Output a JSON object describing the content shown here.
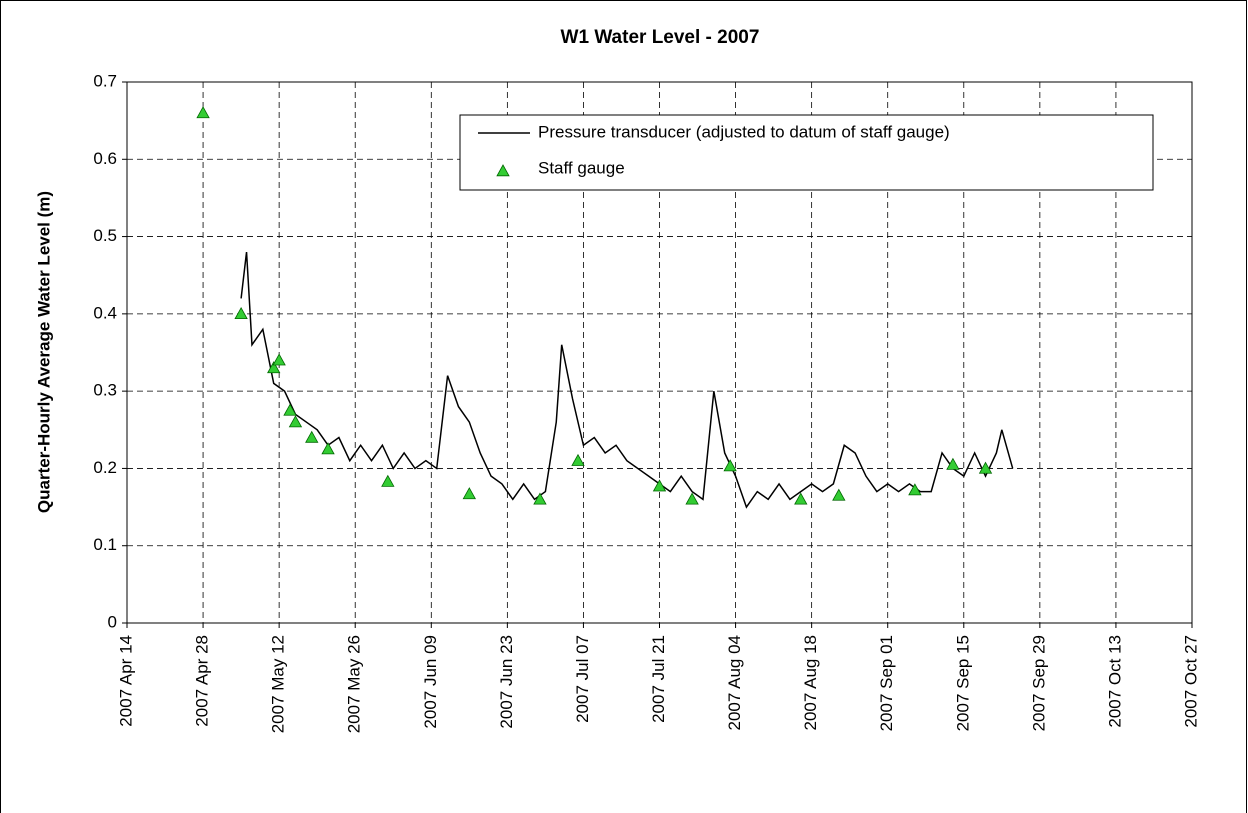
{
  "chart_data": {
    "type": "line",
    "title": "W1 Water Level - 2007",
    "y_label": "Quarter-Hourly Average Water Level (m)",
    "xlim": [
      "2007-04-14",
      "2007-10-27"
    ],
    "xticks": [
      {
        "value": "2007-04-14",
        "label": "2007 Apr 14"
      },
      {
        "value": "2007-04-28",
        "label": "2007 Apr 28"
      },
      {
        "value": "2007-05-12",
        "label": "2007 May 12"
      },
      {
        "value": "2007-05-26",
        "label": "2007 May 26"
      },
      {
        "value": "2007-06-09",
        "label": "2007 Jun 09"
      },
      {
        "value": "2007-06-23",
        "label": "2007 Jun 23"
      },
      {
        "value": "2007-07-07",
        "label": "2007 Jul 07"
      },
      {
        "value": "2007-07-21",
        "label": "2007 Jul 21"
      },
      {
        "value": "2007-08-04",
        "label": "2007 Aug 04"
      },
      {
        "value": "2007-08-18",
        "label": "2007 Aug 18"
      },
      {
        "value": "2007-09-01",
        "label": "2007 Sep 01"
      },
      {
        "value": "2007-09-15",
        "label": "2007 Sep 15"
      },
      {
        "value": "2007-09-29",
        "label": "2007 Sep 29"
      },
      {
        "value": "2007-10-13",
        "label": "2007 Oct 13"
      },
      {
        "value": "2007-10-27",
        "label": "2007 Oct 27"
      }
    ],
    "ylim": [
      0,
      0.7
    ],
    "yticks": [
      0,
      0.1,
      0.2,
      0.3,
      0.4,
      0.5,
      0.6,
      0.7
    ],
    "grid": true,
    "legend": "upper right",
    "series": [
      {
        "name": "Pressure transducer (adjusted to datum of staff gauge)",
        "color": "#000000",
        "style": "line",
        "x": [
          "2007-05-05",
          "2007-05-06",
          "2007-05-07",
          "2007-05-09",
          "2007-05-11",
          "2007-05-13",
          "2007-05-15",
          "2007-05-17",
          "2007-05-19",
          "2007-05-21",
          "2007-05-23",
          "2007-05-25",
          "2007-05-27",
          "2007-05-29",
          "2007-05-31",
          "2007-06-02",
          "2007-06-04",
          "2007-06-06",
          "2007-06-08",
          "2007-06-10",
          "2007-06-12",
          "2007-06-14",
          "2007-06-16",
          "2007-06-18",
          "2007-06-20",
          "2007-06-22",
          "2007-06-24",
          "2007-06-26",
          "2007-06-28",
          "2007-06-30",
          "2007-07-02",
          "2007-07-03",
          "2007-07-05",
          "2007-07-07",
          "2007-07-09",
          "2007-07-11",
          "2007-07-13",
          "2007-07-15",
          "2007-07-17",
          "2007-07-19",
          "2007-07-21",
          "2007-07-23",
          "2007-07-25",
          "2007-07-27",
          "2007-07-29",
          "2007-07-31",
          "2007-08-02",
          "2007-08-04",
          "2007-08-06",
          "2007-08-08",
          "2007-08-10",
          "2007-08-12",
          "2007-08-14",
          "2007-08-16",
          "2007-08-18",
          "2007-08-20",
          "2007-08-22",
          "2007-08-24",
          "2007-08-26",
          "2007-08-28",
          "2007-08-30",
          "2007-09-01",
          "2007-09-03",
          "2007-09-05",
          "2007-09-07",
          "2007-09-09",
          "2007-09-11",
          "2007-09-13",
          "2007-09-15",
          "2007-09-17",
          "2007-09-19",
          "2007-09-21",
          "2007-09-22",
          "2007-09-24"
        ],
        "values": [
          0.42,
          0.48,
          0.36,
          0.38,
          0.31,
          0.3,
          0.27,
          0.26,
          0.25,
          0.23,
          0.24,
          0.21,
          0.23,
          0.21,
          0.23,
          0.2,
          0.22,
          0.2,
          0.21,
          0.2,
          0.32,
          0.28,
          0.26,
          0.22,
          0.19,
          0.18,
          0.16,
          0.18,
          0.16,
          0.17,
          0.26,
          0.36,
          0.29,
          0.23,
          0.24,
          0.22,
          0.23,
          0.21,
          0.2,
          0.19,
          0.18,
          0.17,
          0.19,
          0.17,
          0.16,
          0.3,
          0.22,
          0.19,
          0.15,
          0.17,
          0.16,
          0.18,
          0.16,
          0.17,
          0.18,
          0.17,
          0.18,
          0.23,
          0.22,
          0.19,
          0.17,
          0.18,
          0.17,
          0.18,
          0.17,
          0.17,
          0.22,
          0.2,
          0.19,
          0.22,
          0.19,
          0.22,
          0.25,
          0.2
        ]
      },
      {
        "name": "Staff gauge",
        "color": "#33cc33",
        "style": "triangle",
        "x": [
          "2007-04-28",
          "2007-05-05",
          "2007-05-11",
          "2007-05-12",
          "2007-05-14",
          "2007-05-15",
          "2007-05-18",
          "2007-05-21",
          "2007-06-01",
          "2007-06-16",
          "2007-06-29",
          "2007-07-06",
          "2007-07-21",
          "2007-07-27",
          "2007-08-03",
          "2007-08-16",
          "2007-08-23",
          "2007-09-06",
          "2007-09-13",
          "2007-09-19"
        ],
        "values": [
          0.66,
          0.4,
          0.33,
          0.34,
          0.275,
          0.26,
          0.24,
          0.225,
          0.183,
          0.167,
          0.16,
          0.21,
          0.177,
          0.16,
          0.203,
          0.16,
          0.165,
          0.172,
          0.205,
          0.2
        ]
      }
    ]
  }
}
